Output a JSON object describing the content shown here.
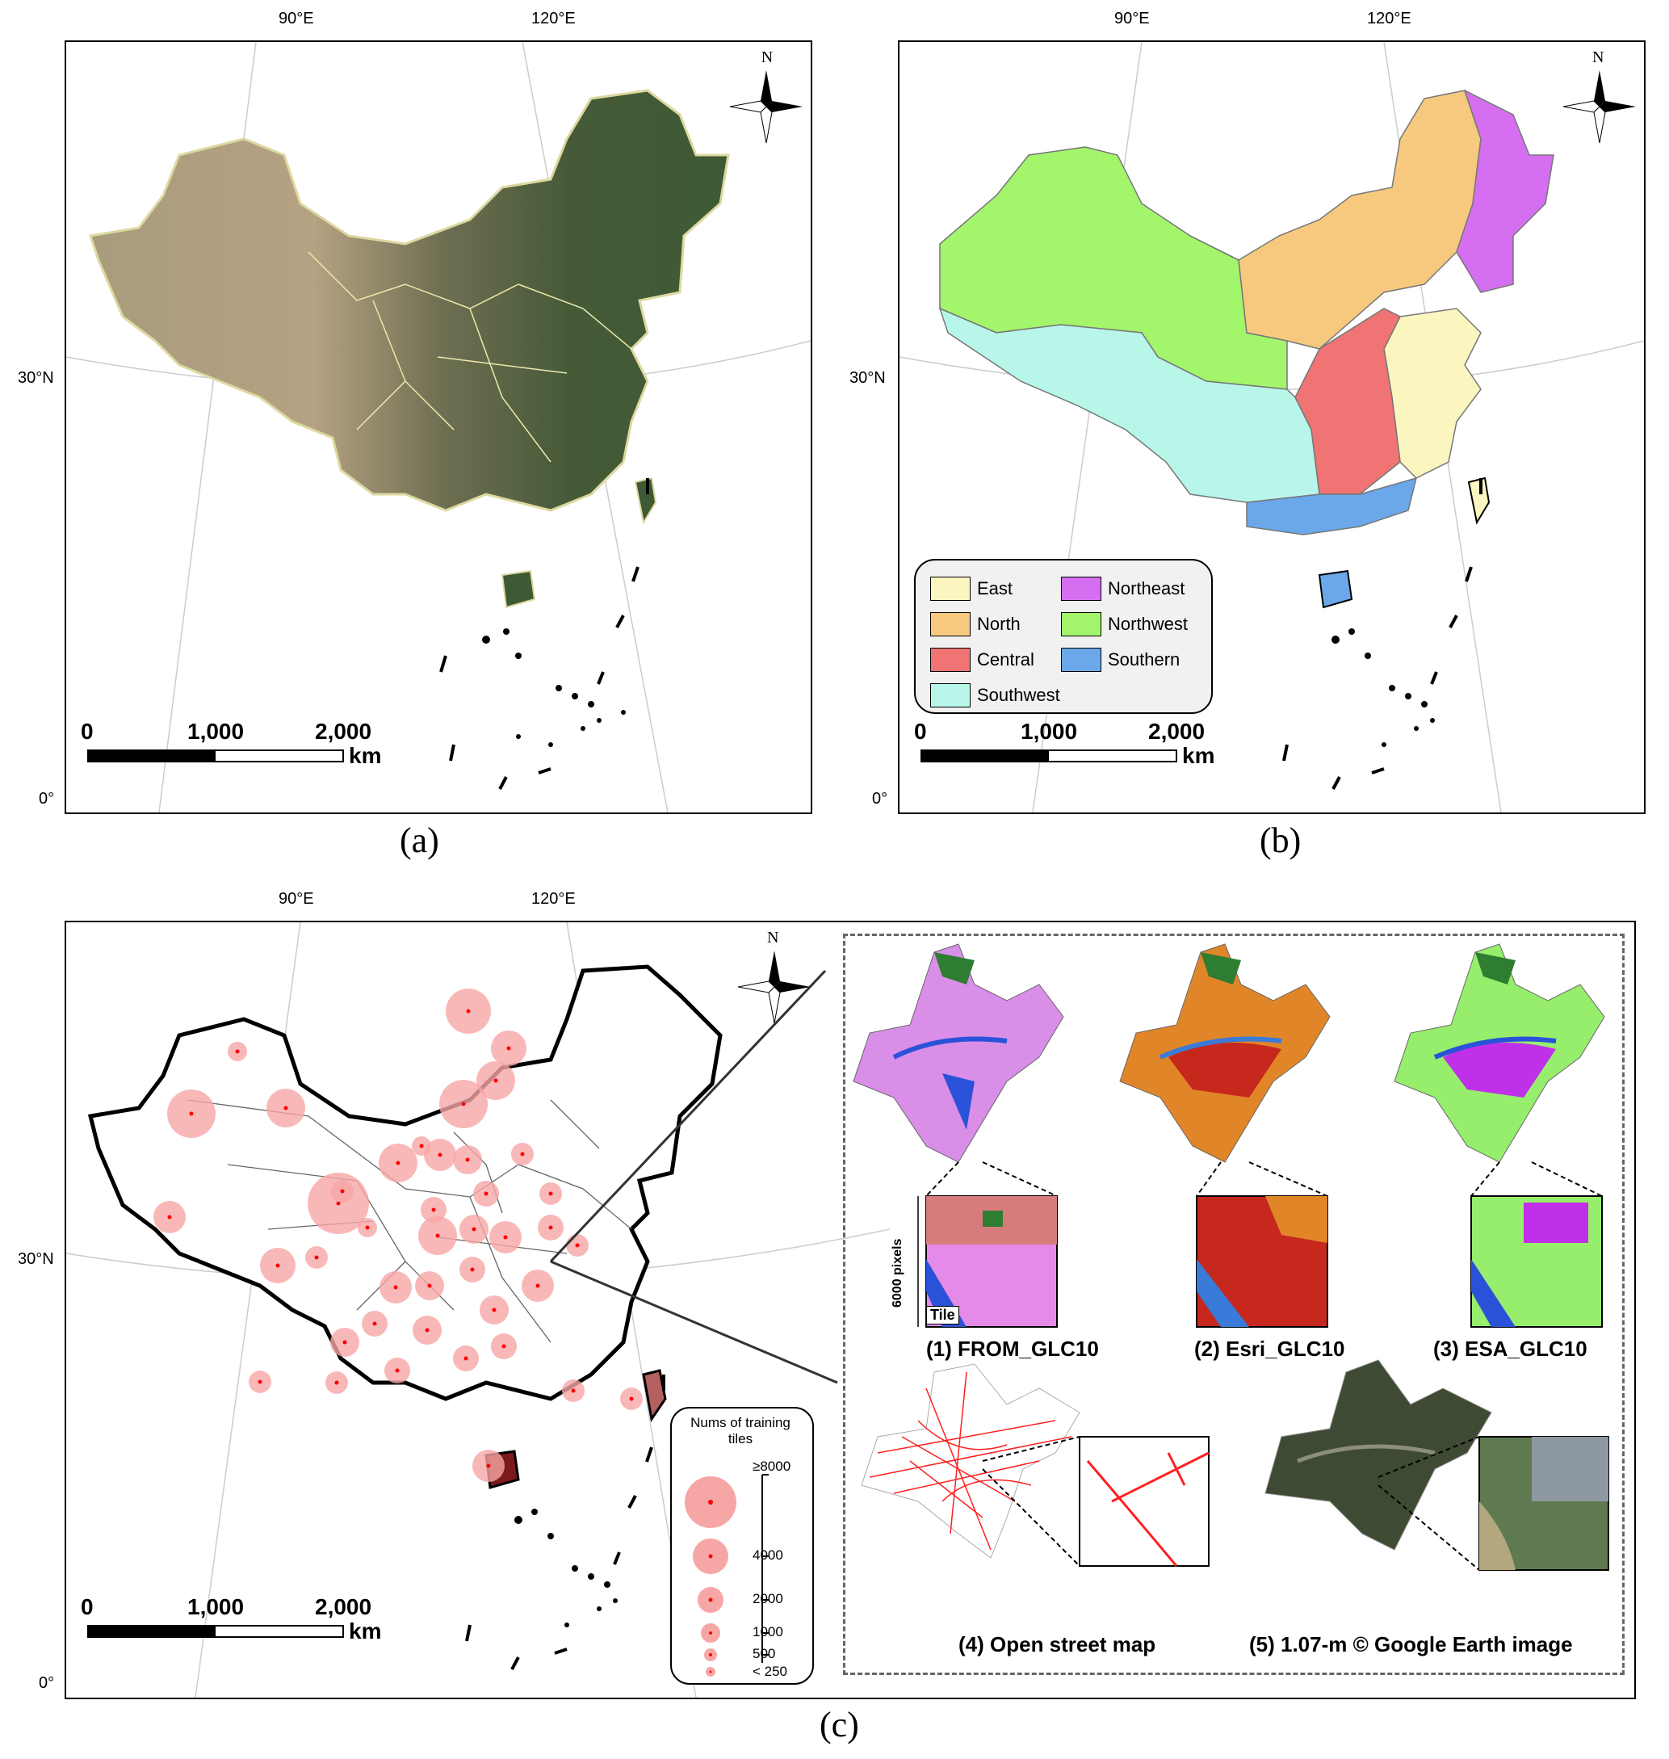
{
  "panels": {
    "a": {
      "label": "(a)",
      "lon_labels": [
        "90°E",
        "120°E"
      ],
      "lat_labels": [
        "30°N",
        "0°"
      ],
      "north": "N"
    },
    "b": {
      "label": "(b)",
      "lon_labels": [
        "90°E",
        "120°E"
      ],
      "lat_labels": [
        "30°N",
        "0°"
      ],
      "north": "N"
    },
    "c": {
      "label": "(c)",
      "lon_labels": [
        "90°E",
        "120°E"
      ],
      "lat_labels": [
        "30°N",
        "0°"
      ],
      "north": "N"
    }
  },
  "scalebar": {
    "ticks": [
      "0",
      "1,000",
      "2,000"
    ],
    "unit": "km"
  },
  "regions": [
    {
      "name": "East",
      "color": "#fbf6c0"
    },
    {
      "name": "Northeast",
      "color": "#d56ef0"
    },
    {
      "name": "North",
      "color": "#f6c97e"
    },
    {
      "name": "Northwest",
      "color": "#a3f56c"
    },
    {
      "name": "Central",
      "color": "#f07474"
    },
    {
      "name": "Southern",
      "color": "#6aa8ea"
    },
    {
      "name": "Southwest",
      "color": "#b7f6e8"
    }
  ],
  "size_legend": {
    "title": "Nums of training tiles",
    "classes": [
      "≥8000",
      "4000",
      "2000",
      "1000",
      "500",
      "< 250"
    ]
  },
  "products": [
    {
      "caption": "(1) FROM_GLC10"
    },
    {
      "caption": "(2) Esri_GLC10"
    },
    {
      "caption": "(3) ESA_GLC10"
    },
    {
      "caption": "(4) Open street map"
    },
    {
      "caption": "(5) 1.07-m © Google Earth image"
    }
  ],
  "tile_annotation": {
    "size": "6000 pixels",
    "tile": "Tile"
  },
  "colors": {
    "point": "#ff0000",
    "bubble": "#f7a6a6"
  }
}
